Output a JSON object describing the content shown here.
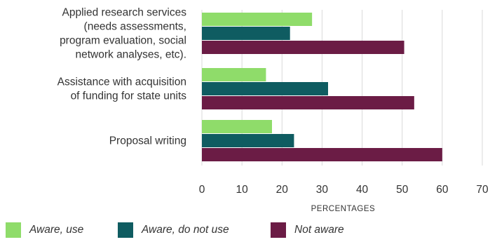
{
  "chart_data": {
    "type": "bar",
    "orientation": "horizontal",
    "categories": [
      [
        "Applied research services",
        "(needs assessments,",
        "program evaluation, social",
        "network analyses, etc)."
      ],
      [
        "Assistance with acquisition",
        "of funding for state units"
      ],
      [
        "Proposal writing"
      ]
    ],
    "series": [
      {
        "name": "Aware, use",
        "color": "#8fdc6a",
        "values": [
          27.5,
          16,
          17.5
        ]
      },
      {
        "name": "Aware, do not use",
        "color": "#0f5c61",
        "values": [
          22,
          31.5,
          23
        ]
      },
      {
        "name": "Not aware",
        "color": "#6b1c45",
        "values": [
          50.5,
          53,
          60
        ]
      }
    ],
    "xlabel": "PERCENTAGES",
    "xlim": [
      0,
      70
    ],
    "xticks": [
      "0",
      "10",
      "20",
      "30",
      "40",
      "50",
      "60",
      "70"
    ],
    "grid": true,
    "legend_position": "bottom"
  }
}
